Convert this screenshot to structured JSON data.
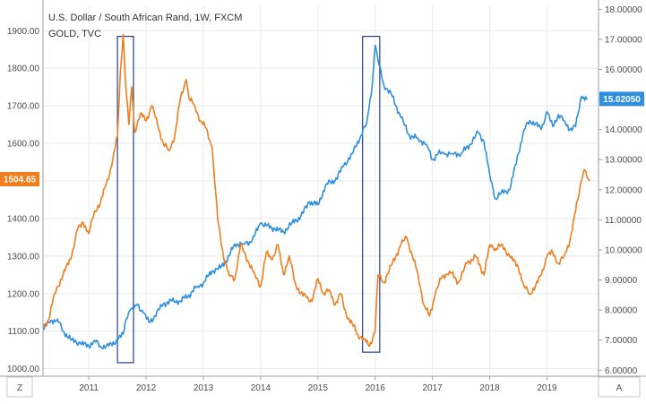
{
  "header": {
    "title": "U.S. Dollar / South African Rand, 1W, FXCM",
    "subtitle": "GOLD, TVC"
  },
  "colors": {
    "usdzar": "#2e8fdd",
    "gold": "#f07d1e",
    "highlight_box": "#2b3d8f",
    "grid": "#e7eaee",
    "axis": "#9aa0a6"
  },
  "footer": {
    "left_button": "Z",
    "right_button": "A"
  },
  "badges": {
    "gold_last": "1504.65",
    "usdzar_last": "15.02050"
  },
  "chart_data": {
    "type": "line",
    "x_ticks": [
      "2011",
      "2012",
      "2013",
      "2014",
      "2015",
      "2016",
      "2017",
      "2018",
      "2019"
    ],
    "xlim": [
      2010.2,
      2019.9
    ],
    "left_axis": {
      "series": "GOLD",
      "ylim": [
        980,
        1965
      ],
      "ticks": [
        "1000.00",
        "1100.00",
        "1200.00",
        "1300.00",
        "1400.00",
        "1500.00",
        "1600.00",
        "1700.00",
        "1800.00",
        "1900.00"
      ],
      "tick_values": [
        1000,
        1100,
        1200,
        1300,
        1400,
        1500,
        1600,
        1700,
        1800,
        1900
      ]
    },
    "right_axis": {
      "series": "USD/ZAR",
      "ylim": [
        5.8,
        18.1
      ],
      "ticks": [
        "6.00000",
        "7.00000",
        "8.00000",
        "9.00000",
        "10.00000",
        "11.00000",
        "12.00000",
        "13.00000",
        "14.00000",
        "15.00000",
        "16.00000",
        "17.00000",
        "18.00000"
      ],
      "tick_values": [
        6,
        7,
        8,
        9,
        10,
        11,
        12,
        13,
        14,
        15,
        16,
        17,
        18
      ]
    },
    "series": [
      {
        "name": "U.S. Dollar / South African Rand",
        "color": "#2e8fdd",
        "axis": "right",
        "x": [
          2010.2,
          2010.3,
          2010.45,
          2010.55,
          2010.7,
          2010.85,
          2011.0,
          2011.1,
          2011.2,
          2011.35,
          2011.5,
          2011.6,
          2011.65,
          2011.72,
          2011.78,
          2011.85,
          2011.95,
          2012.05,
          2012.15,
          2012.3,
          2012.45,
          2012.6,
          2012.75,
          2012.9,
          2013.0,
          2013.15,
          2013.3,
          2013.45,
          2013.55,
          2013.7,
          2013.85,
          2014.0,
          2014.1,
          2014.25,
          2014.4,
          2014.55,
          2014.7,
          2014.85,
          2015.0,
          2015.15,
          2015.3,
          2015.45,
          2015.6,
          2015.75,
          2015.85,
          2015.95,
          2016.0,
          2016.05,
          2016.15,
          2016.3,
          2016.45,
          2016.6,
          2016.75,
          2016.9,
          2017.0,
          2017.1,
          2017.2,
          2017.35,
          2017.5,
          2017.65,
          2017.8,
          2017.9,
          2018.0,
          2018.1,
          2018.2,
          2018.35,
          2018.5,
          2018.6,
          2018.7,
          2018.8,
          2018.9,
          2019.0,
          2019.1,
          2019.2,
          2019.3,
          2019.4,
          2019.5,
          2019.6,
          2019.7
        ],
        "y": [
          7.4,
          7.6,
          7.7,
          7.3,
          7.0,
          6.9,
          6.8,
          7.0,
          6.8,
          6.8,
          7.0,
          7.2,
          7.7,
          8.0,
          8.0,
          8.2,
          7.9,
          7.6,
          7.8,
          8.2,
          8.3,
          8.3,
          8.5,
          8.8,
          8.9,
          9.3,
          9.4,
          9.8,
          10.2,
          10.2,
          10.3,
          10.9,
          10.8,
          10.7,
          10.6,
          10.9,
          11.1,
          11.6,
          11.5,
          12.2,
          12.3,
          12.8,
          13.2,
          13.8,
          14.2,
          15.5,
          16.8,
          16.3,
          15.5,
          15.1,
          14.4,
          13.8,
          13.7,
          13.5,
          13.0,
          13.2,
          13.2,
          13.2,
          13.2,
          13.5,
          13.9,
          13.6,
          12.5,
          11.7,
          11.9,
          12.0,
          13.2,
          14.0,
          14.3,
          14.2,
          14.0,
          14.6,
          14.1,
          14.5,
          14.3,
          14.0,
          14.1,
          15.1,
          15.0
        ]
      },
      {
        "name": "GOLD",
        "color": "#f07d1e",
        "axis": "left",
        "x": [
          2010.2,
          2010.3,
          2010.4,
          2010.55,
          2010.7,
          2010.8,
          2010.9,
          2011.0,
          2011.1,
          2011.2,
          2011.3,
          2011.4,
          2011.5,
          2011.55,
          2011.6,
          2011.65,
          2011.7,
          2011.75,
          2011.8,
          2011.9,
          2012.0,
          2012.1,
          2012.2,
          2012.3,
          2012.4,
          2012.5,
          2012.6,
          2012.7,
          2012.75,
          2012.85,
          2012.95,
          2013.05,
          2013.15,
          2013.25,
          2013.35,
          2013.45,
          2013.55,
          2013.65,
          2013.8,
          2013.9,
          2014.0,
          2014.1,
          2014.2,
          2014.3,
          2014.4,
          2014.5,
          2014.6,
          2014.7,
          2014.8,
          2014.9,
          2015.0,
          2015.1,
          2015.2,
          2015.3,
          2015.4,
          2015.5,
          2015.6,
          2015.7,
          2015.8,
          2015.9,
          2016.0,
          2016.05,
          2016.15,
          2016.3,
          2016.45,
          2016.55,
          2016.65,
          2016.75,
          2016.85,
          2016.95,
          2017.05,
          2017.15,
          2017.3,
          2017.45,
          2017.6,
          2017.75,
          2017.9,
          2018.0,
          2018.1,
          2018.2,
          2018.35,
          2018.5,
          2018.6,
          2018.7,
          2018.8,
          2018.9,
          2019.0,
          2019.1,
          2019.2,
          2019.3,
          2019.4,
          2019.5,
          2019.6,
          2019.65,
          2019.7,
          2019.75
        ],
        "y": [
          1110,
          1130,
          1200,
          1250,
          1300,
          1370,
          1390,
          1360,
          1420,
          1440,
          1490,
          1540,
          1620,
          1790,
          1890,
          1740,
          1650,
          1750,
          1630,
          1680,
          1660,
          1700,
          1650,
          1600,
          1580,
          1620,
          1720,
          1770,
          1720,
          1700,
          1660,
          1640,
          1590,
          1400,
          1300,
          1250,
          1240,
          1330,
          1280,
          1250,
          1220,
          1310,
          1290,
          1330,
          1250,
          1300,
          1230,
          1200,
          1190,
          1180,
          1240,
          1200,
          1210,
          1170,
          1200,
          1140,
          1120,
          1090,
          1080,
          1060,
          1100,
          1250,
          1230,
          1280,
          1330,
          1350,
          1300,
          1250,
          1170,
          1140,
          1200,
          1240,
          1260,
          1230,
          1280,
          1300,
          1250,
          1330,
          1320,
          1330,
          1300,
          1270,
          1220,
          1200,
          1220,
          1250,
          1300,
          1310,
          1280,
          1300,
          1340,
          1420,
          1500,
          1530,
          1510,
          1500
        ]
      }
    ],
    "highlight_regions": [
      {
        "x0": 2011.5,
        "x1": 2011.78,
        "y0": 6.25,
        "y1": 17.1
      },
      {
        "x0": 2015.78,
        "x1": 2016.08,
        "y0": 6.6,
        "y1": 17.1
      }
    ]
  }
}
